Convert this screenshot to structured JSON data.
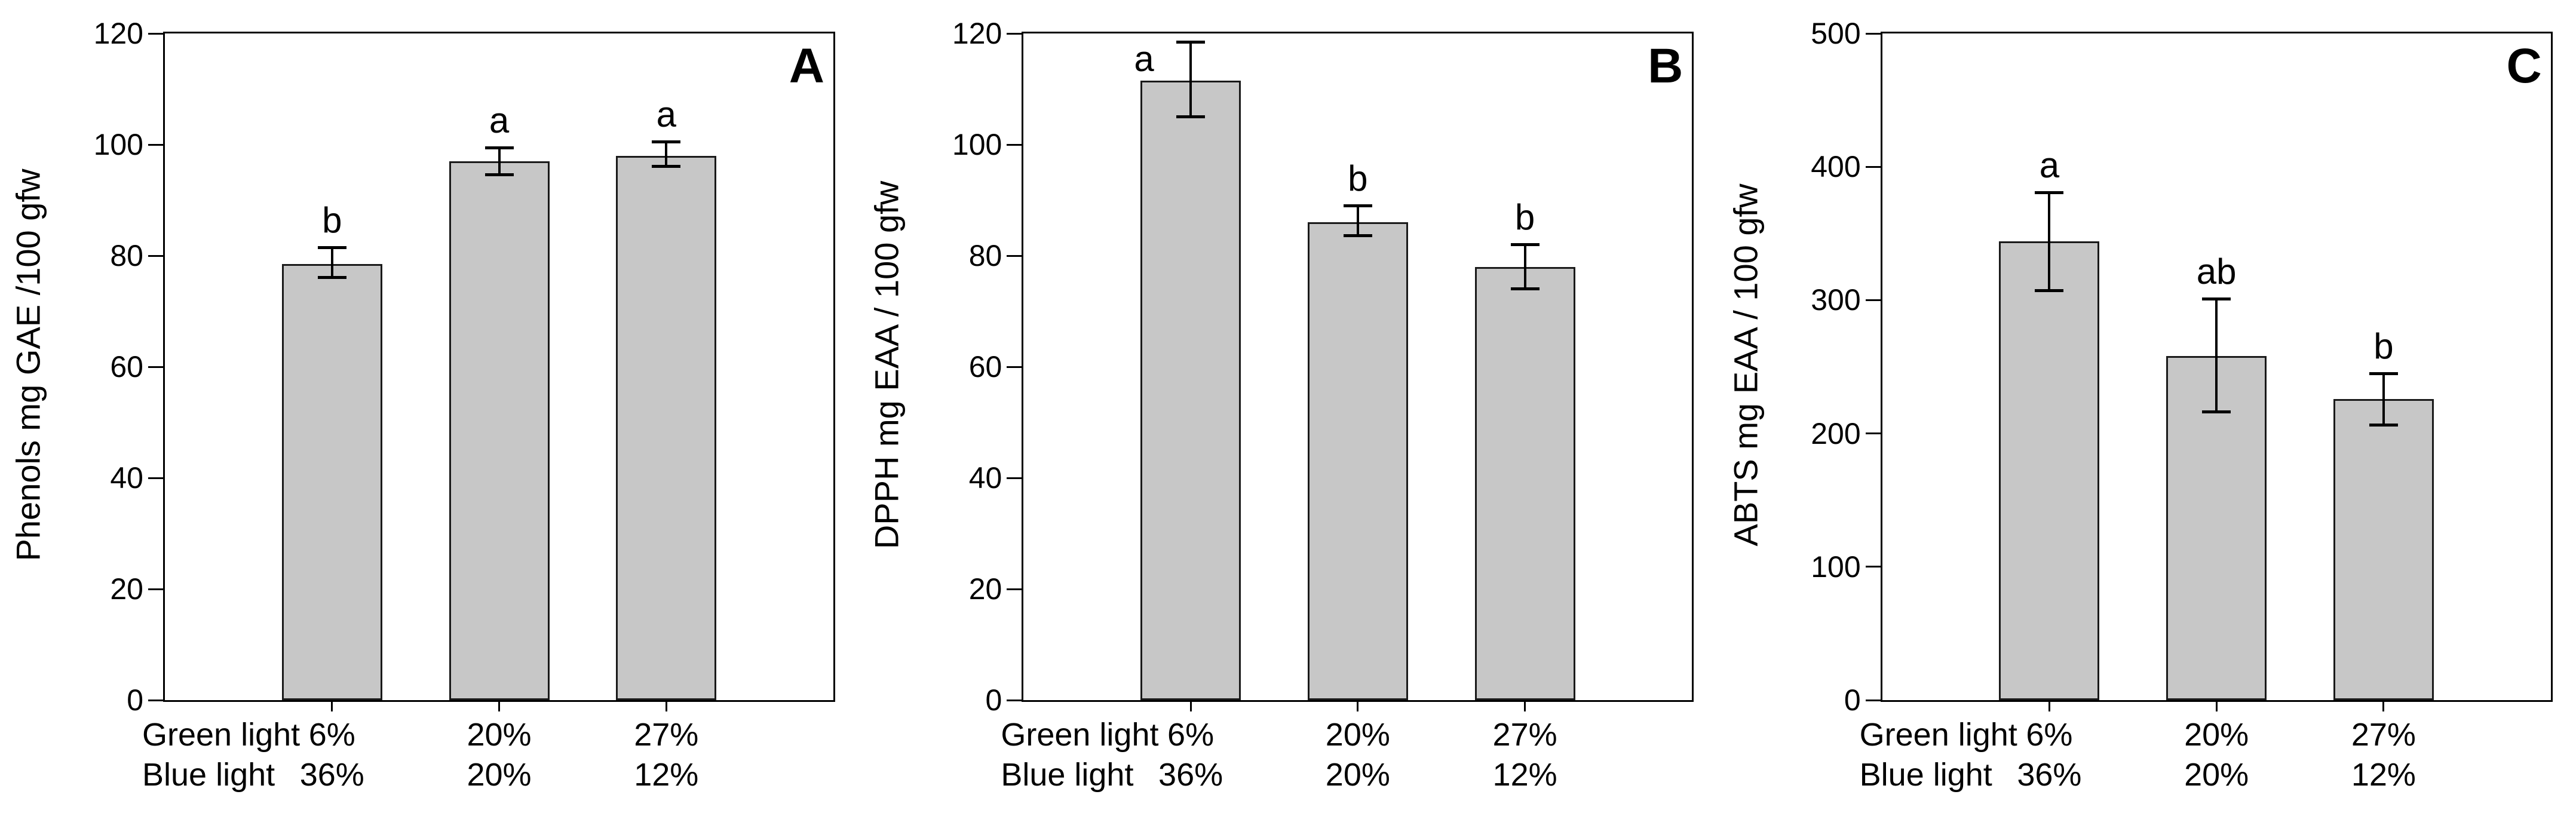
{
  "figure_background": "#ffffff",
  "bar_fill_color": "#c7c7c7",
  "bar_border_color": "#1a1a1a",
  "axis_color": "#000000",
  "chart_data": [
    {
      "type": "bar",
      "panel_label": "A",
      "title": "",
      "xlabel": "",
      "ylabel": "Phenols mg GAE /100 gfw",
      "ylim": [
        0,
        120
      ],
      "yticks": [
        0,
        20,
        40,
        60,
        80,
        100,
        120
      ],
      "grid": false,
      "legend": "none",
      "categories": [
        "Green light 6% / Blue light 36%",
        "Green light 20% / Blue light 20%",
        "Green light 27% / Blue light 12%"
      ],
      "x_rows": [
        {
          "label": "Green light",
          "values": [
            "6%",
            "20%",
            "27%"
          ]
        },
        {
          "label": "Blue light",
          "values": [
            "36%",
            "20%",
            "12%"
          ]
        }
      ],
      "values": [
        78.5,
        97,
        98
      ],
      "error_high": [
        81.5,
        99.5,
        100.5
      ],
      "error_low": [
        76,
        94.5,
        96
      ],
      "sig_letters": [
        "b",
        "a",
        "a"
      ],
      "sig_letter_pos": [
        "above",
        "above",
        "above"
      ]
    },
    {
      "type": "bar",
      "panel_label": "B",
      "title": "",
      "xlabel": "",
      "ylabel": "DPPH mg EAA / 100 gfw",
      "ylim": [
        0,
        120
      ],
      "yticks": [
        0,
        20,
        40,
        60,
        80,
        100,
        120
      ],
      "grid": false,
      "legend": "none",
      "categories": [
        "Green light 6% / Blue light 36%",
        "Green light 20% / Blue light 20%",
        "Green light 27% / Blue light 12%"
      ],
      "x_rows": [
        {
          "label": "Green light",
          "values": [
            "6%",
            "20%",
            "27%"
          ]
        },
        {
          "label": "Blue light",
          "values": [
            "36%",
            "20%",
            "12%"
          ]
        }
      ],
      "values": [
        111.5,
        86,
        78
      ],
      "error_high": [
        118.5,
        89,
        82
      ],
      "error_low": [
        105,
        83.5,
        74
      ],
      "sig_letters": [
        "a",
        "b",
        "b"
      ],
      "sig_letter_pos": [
        "side",
        "above",
        "above"
      ]
    },
    {
      "type": "bar",
      "panel_label": "C",
      "title": "",
      "xlabel": "",
      "ylabel": "ABTS mg EAA / 100 gfw",
      "ylim": [
        0,
        500
      ],
      "yticks": [
        0,
        100,
        200,
        300,
        400,
        500
      ],
      "grid": false,
      "legend": "none",
      "categories": [
        "Green light 6% / Blue light 36%",
        "Green light 20% / Blue light 20%",
        "Green light 27% / Blue light 12%"
      ],
      "x_rows": [
        {
          "label": "Green light",
          "values": [
            "6%",
            "20%",
            "27%"
          ]
        },
        {
          "label": "Blue light",
          "values": [
            "36%",
            "20%",
            "12%"
          ]
        }
      ],
      "values": [
        344,
        258,
        226
      ],
      "error_high": [
        381,
        301,
        245
      ],
      "error_low": [
        307,
        216,
        206
      ],
      "sig_letters": [
        "a",
        "ab",
        "b"
      ],
      "sig_letter_pos": [
        "above",
        "above",
        "above"
      ]
    }
  ]
}
